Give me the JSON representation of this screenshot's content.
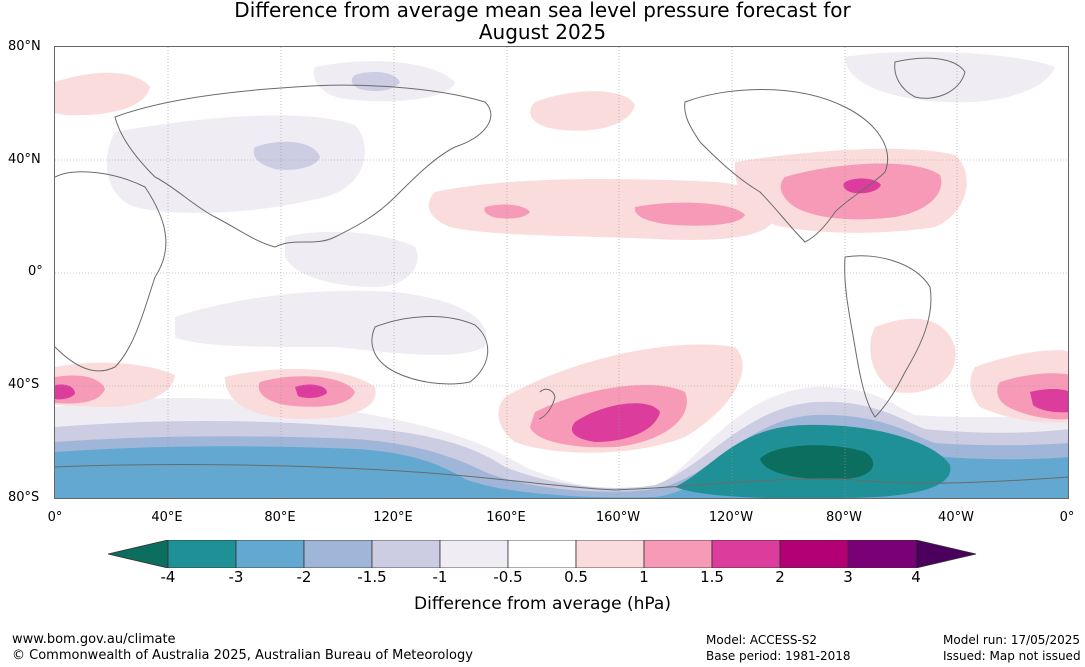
{
  "title": {
    "line1": "Difference from average mean sea level pressure forecast for",
    "line2": "August 2025"
  },
  "map": {
    "lat_labels": [
      "80°N",
      "40°N",
      "0°",
      "40°S",
      "80°S"
    ],
    "lon_labels": [
      "0°",
      "40°E",
      "80°E",
      "120°E",
      "160°E",
      "160°W",
      "120°W",
      "80°W",
      "40°W",
      "0°"
    ]
  },
  "colorbar": {
    "ticks": [
      "-4",
      "-3",
      "-2",
      "-1.5",
      "-1",
      "-0.5",
      "0.5",
      "1",
      "1.5",
      "2",
      "3",
      "4"
    ],
    "colors": [
      "#0b6e5e",
      "#1f9096",
      "#62a8d0",
      "#a0b6d8",
      "#cccce2",
      "#f0ecf4",
      "#ffffff",
      "#fbdcdc",
      "#f79ab8",
      "#dc3d9d",
      "#b30075",
      "#7a0077",
      "#4a005c"
    ],
    "label": "Difference from average (hPa)"
  },
  "footer": {
    "url": "www.bom.gov.au/climate",
    "copyright": "© Commonwealth of Australia 2025, Australian Bureau of Meteorology",
    "model": "Model: ACCESS-S2",
    "base_period": "Base period: 1981-2018",
    "model_run": "Model run: 17/05/2025",
    "issued": "Issued: Map not issued"
  }
}
